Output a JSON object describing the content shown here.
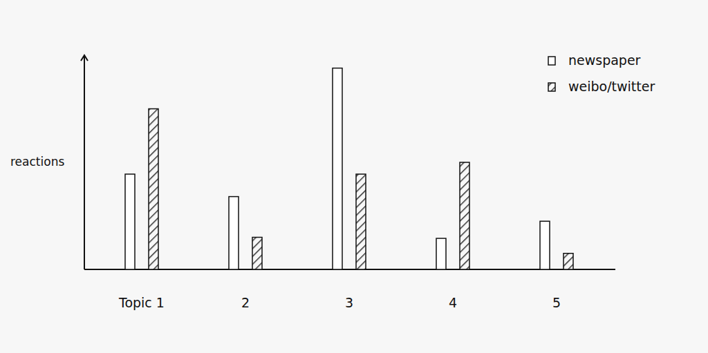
{
  "chart_data": {
    "type": "bar",
    "y_label": "reactions",
    "categories": [
      "Topic 1",
      "2",
      "3",
      "4",
      "5"
    ],
    "series": [
      {
        "name": "newspaper",
        "color": "#ffffff",
        "values": [
          44.5,
          34,
          94,
          14.5,
          22.5
        ]
      },
      {
        "name": "weibo/twitter",
        "color": "#333333",
        "values": [
          75,
          15,
          44.5,
          50,
          7.5
        ]
      }
    ],
    "ylim": [
      0,
      100
    ],
    "tick_labels": false,
    "grid": false,
    "legend": "top-right"
  }
}
